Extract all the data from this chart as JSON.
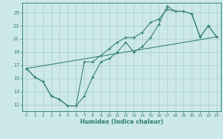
{
  "xlabel": "Humidex (Indice chaleur)",
  "background_color": "#cce8e8",
  "line_color": "#2e7d6e",
  "grid_color": "#aacccc",
  "xlim": [
    -0.5,
    23.5
  ],
  "ylim": [
    10.0,
    26.5
  ],
  "xticks": [
    0,
    1,
    2,
    3,
    4,
    5,
    6,
    7,
    8,
    9,
    10,
    11,
    12,
    13,
    14,
    15,
    16,
    17,
    18,
    19,
    20,
    21,
    22,
    23
  ],
  "yticks": [
    11,
    13,
    15,
    17,
    19,
    21,
    23,
    25
  ],
  "line1_x": [
    0,
    1,
    2,
    3,
    4,
    5,
    6,
    7,
    8,
    9,
    10,
    11,
    12,
    13,
    14,
    15,
    16,
    17,
    18,
    19,
    20,
    21,
    22,
    23
  ],
  "line1_y": [
    16.5,
    15.2,
    14.5,
    12.3,
    11.8,
    10.8,
    10.8,
    12.3,
    15.2,
    17.5,
    18.0,
    19.0,
    20.5,
    19.0,
    19.8,
    21.2,
    23.2,
    26.0,
    25.2,
    25.2,
    24.8,
    21.3,
    23.0,
    21.3
  ],
  "line2_x": [
    0,
    1,
    2,
    3,
    4,
    5,
    6,
    7,
    8,
    9,
    10,
    11,
    12,
    13,
    14,
    15,
    16,
    17,
    18,
    19,
    20,
    21,
    22,
    23
  ],
  "line2_y": [
    16.5,
    15.2,
    14.5,
    12.3,
    11.8,
    10.8,
    10.8,
    17.5,
    17.5,
    18.5,
    19.5,
    20.5,
    21.2,
    21.2,
    22.0,
    23.5,
    24.0,
    25.5,
    25.2,
    25.2,
    24.8,
    21.3,
    23.0,
    21.3
  ],
  "line3_x": [
    0,
    23
  ],
  "line3_y": [
    16.5,
    21.3
  ]
}
